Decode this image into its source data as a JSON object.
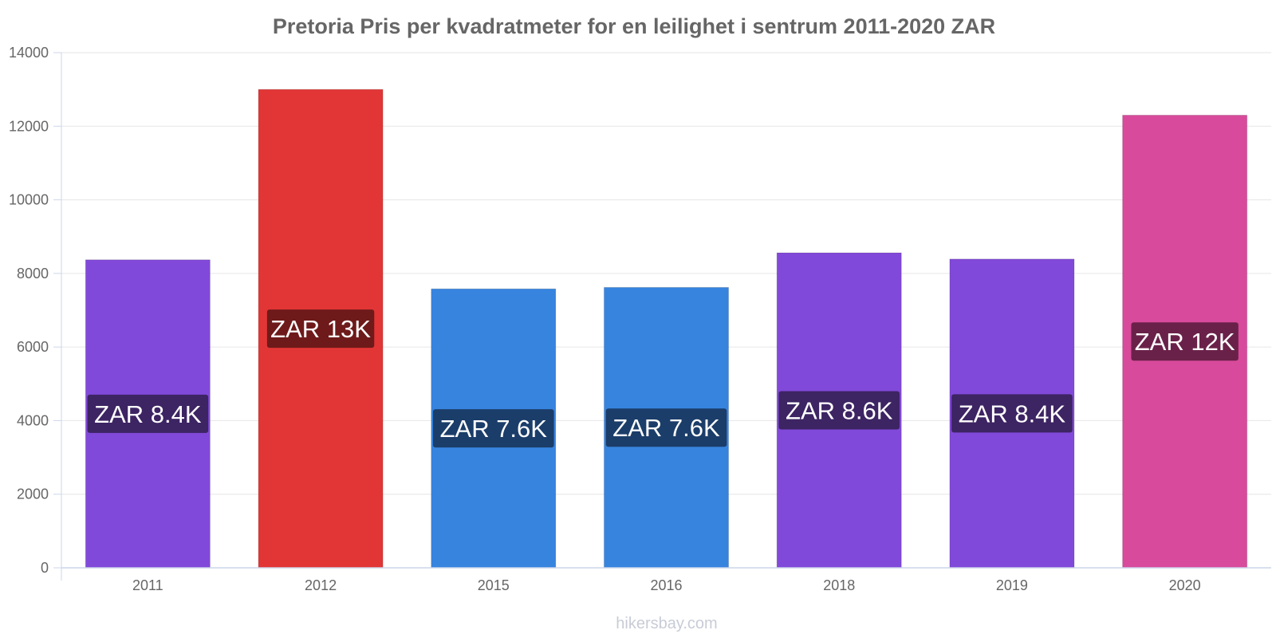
{
  "chart_data": {
    "type": "bar",
    "title": "Pretoria Pris per kvadratmeter for en leilighet i sentrum 2011-2020 ZAR",
    "xlabel": "",
    "ylabel": "",
    "categories": [
      "2011",
      "2012",
      "2015",
      "2016",
      "2018",
      "2019",
      "2020"
    ],
    "values": [
      8370,
      13000,
      7580,
      7620,
      8560,
      8390,
      12300
    ],
    "data_labels": [
      "ZAR 8.4K",
      "ZAR 13K",
      "ZAR 7.6K",
      "ZAR 7.6K",
      "ZAR 8.6K",
      "ZAR 8.4K",
      "ZAR 12K"
    ],
    "bar_colors": [
      "#8149d9",
      "#e23636",
      "#3784df",
      "#3784df",
      "#8149d9",
      "#8149d9",
      "#d84a9c"
    ],
    "label_bg_colors": [
      "#3d2463",
      "#6e1a1a",
      "#1b3d69",
      "#1b3d69",
      "#3d2463",
      "#3d2463",
      "#6a2149"
    ],
    "ylim": [
      0,
      14000
    ],
    "yticks": [
      0,
      2000,
      4000,
      6000,
      8000,
      10000,
      12000,
      14000
    ],
    "grid": true,
    "legend": "none"
  },
  "watermark": "hikersbay.com"
}
